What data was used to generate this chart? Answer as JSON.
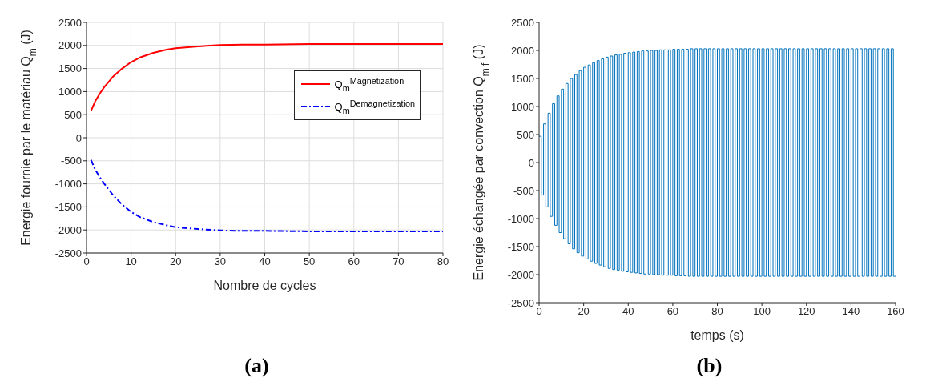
{
  "chart_data": [
    {
      "type": "line",
      "xlabel": "Nombre de cycles",
      "ylabel": "Energie fournie par le matériau Q$_{m}$ (J)",
      "annotations": [
        "(a)"
      ],
      "xlim": [
        0,
        80
      ],
      "xticks": [
        0,
        10,
        20,
        30,
        40,
        50,
        60,
        70,
        80
      ],
      "ylim": [
        -2500,
        2500
      ],
      "yticks": [
        -2500,
        -2000,
        -1500,
        -1000,
        -500,
        0,
        500,
        1000,
        1500,
        2000,
        2500
      ],
      "grid": true,
      "legend": "top right",
      "series": [
        {
          "name": "Q$_{m}$$^{Magnetization}$",
          "color": "#ff0000",
          "line_style": "solid",
          "x": [
            1,
            2,
            3,
            4,
            6,
            8,
            10,
            12,
            15,
            18,
            20,
            25,
            30,
            35,
            40,
            50,
            60,
            70,
            80
          ],
          "values": [
            580,
            800,
            960,
            1100,
            1330,
            1500,
            1640,
            1740,
            1840,
            1910,
            1940,
            1980,
            2010,
            2020,
            2020,
            2030,
            2030,
            2030,
            2030
          ]
        },
        {
          "name": "Q$_{m}$$^{Demagnetization}$",
          "color": "#0000ff",
          "line_style": "dashed",
          "x": [
            1,
            2,
            3,
            4,
            6,
            8,
            10,
            12,
            15,
            18,
            20,
            25,
            30,
            35,
            40,
            50,
            60,
            70,
            80
          ],
          "values": [
            -480,
            -700,
            -860,
            -1000,
            -1250,
            -1450,
            -1610,
            -1720,
            -1830,
            -1900,
            -1940,
            -1980,
            -2010,
            -2020,
            -2020,
            -2030,
            -2030,
            -2030,
            -2030
          ]
        }
      ]
    },
    {
      "type": "step",
      "xlabel": "temps (s)",
      "ylabel": "Energie échangée par convection Q$_{m f}$ (J)",
      "annotations": [
        "(b)"
      ],
      "xlim": [
        0,
        160
      ],
      "xticks": [
        0,
        20,
        40,
        60,
        80,
        100,
        120,
        140,
        160
      ],
      "ylim": [
        -2500,
        2500
      ],
      "yticks": [
        -2500,
        -2000,
        -1500,
        -1000,
        -500,
        0,
        500,
        1000,
        1500,
        2000,
        2500
      ],
      "series": [
        {
          "color": "#0072bd",
          "x": [
            0,
            1,
            2,
            3,
            4,
            5,
            6,
            7,
            8,
            9,
            10,
            11,
            12,
            13,
            14,
            15,
            16,
            17,
            18,
            19,
            20,
            21,
            22,
            23,
            24,
            25,
            26,
            27,
            28,
            29,
            30,
            31,
            32,
            33,
            34,
            35,
            36,
            37,
            38,
            39,
            40,
            41,
            42,
            43,
            44,
            45,
            46,
            47,
            48,
            49,
            50,
            51,
            52,
            53,
            54,
            55,
            56,
            57,
            58,
            59,
            60,
            61,
            62,
            63,
            64,
            65,
            66,
            67,
            68,
            69,
            70,
            71,
            72,
            73,
            74,
            75,
            76,
            77,
            78,
            79,
            80,
            81,
            82,
            83,
            84,
            85,
            86,
            87,
            88,
            89,
            90,
            91,
            92,
            93,
            94,
            95,
            96,
            97,
            98,
            99,
            100,
            101,
            102,
            103,
            104,
            105,
            106,
            107,
            108,
            109,
            110,
            111,
            112,
            113,
            114,
            115,
            116,
            117,
            118,
            119,
            120,
            121,
            122,
            123,
            124,
            125,
            126,
            127,
            128,
            129,
            130,
            131,
            132,
            133,
            134,
            135,
            136,
            137,
            138,
            139,
            140,
            141,
            142,
            143,
            144,
            145,
            146,
            147,
            148,
            149,
            150,
            151,
            152,
            153,
            154,
            155,
            156,
            157,
            158,
            159,
            160
          ],
          "values": [
            470,
            -580,
            690,
            -790,
            880,
            -960,
            1050,
            -1120,
            1190,
            -1250,
            1310,
            -1360,
            1410,
            -1450,
            1500,
            -1540,
            1570,
            -1610,
            1640,
            -1670,
            1700,
            -1720,
            1740,
            -1760,
            1780,
            -1800,
            1820,
            -1830,
            1850,
            -1860,
            1880,
            -1890,
            1900,
            -1910,
            1920,
            -1920,
            1930,
            -1940,
            1950,
            -1950,
            1960,
            -1960,
            1970,
            -1970,
            1980,
            -1980,
            1990,
            -1990,
            1990,
            -1990,
            2000,
            -2000,
            2000,
            -2000,
            2010,
            -2010,
            2010,
            -2010,
            2010,
            -2010,
            2020,
            -2020,
            2020,
            -2020,
            2020,
            -2020,
            2020,
            -2030,
            2030,
            -2030,
            2030,
            -2030,
            2030,
            -2030,
            2030,
            -2030,
            2030,
            -2030,
            2030,
            -2030,
            2030,
            -2030,
            2030,
            -2030,
            2030,
            -2030,
            2030,
            -2030,
            2030,
            -2030,
            2030,
            -2030,
            2030,
            -2030,
            2030,
            -2030,
            2030,
            -2030,
            2030,
            -2030,
            2030,
            -2030,
            2030,
            -2030,
            2030,
            -2030,
            2030,
            -2030,
            2030,
            -2030,
            2030,
            -2030,
            2030,
            -2030,
            2030,
            -2030,
            2030,
            -2030,
            2030,
            -2030,
            2030,
            -2030,
            2030,
            -2030,
            2030,
            -2030,
            2030,
            -2030,
            2030,
            -2030,
            2030,
            -2030,
            2030,
            -2030,
            2030,
            -2030,
            2030,
            -2030,
            2030,
            -2030,
            2030,
            -2030,
            2030,
            -2030,
            2030,
            -2030,
            2030,
            -2030,
            2030,
            -2030,
            2030,
            -2030,
            2030,
            -2030,
            2030,
            -2030,
            2030,
            -2030,
            2030,
            -2030,
            -2030
          ]
        }
      ]
    }
  ]
}
